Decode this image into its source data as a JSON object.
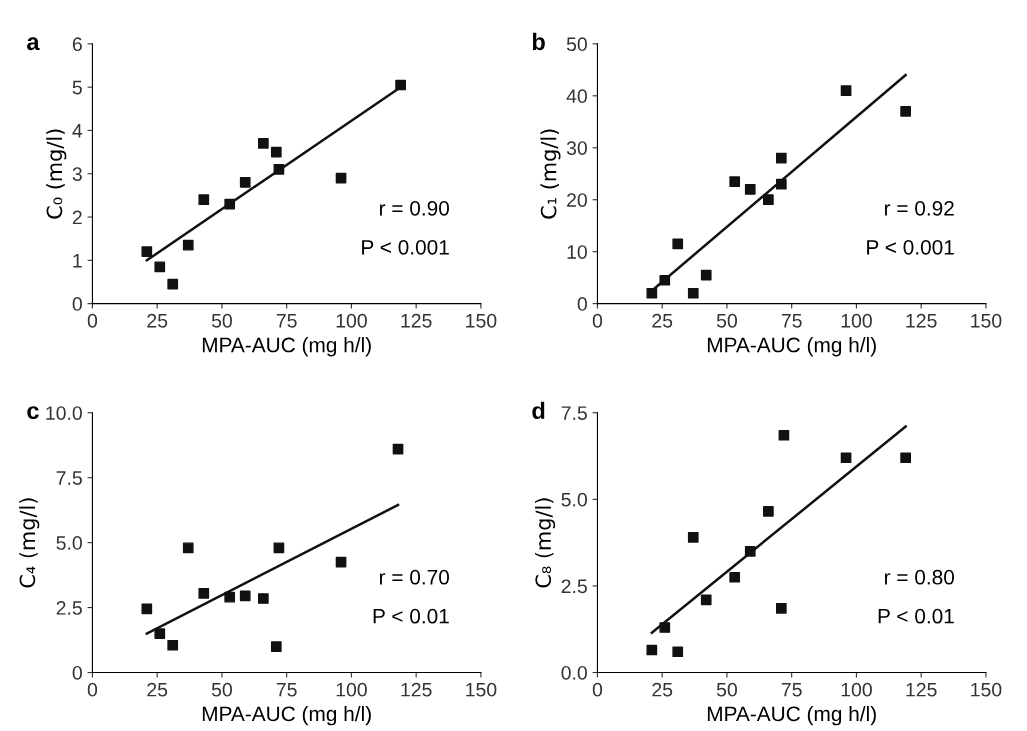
{
  "chart_data": [
    {
      "type": "scatter",
      "title": "a",
      "xlabel": "MPA-AUC (mg h/l)",
      "ylabel": "C₀ (mg/l)",
      "xlim": [
        0,
        150
      ],
      "xticks": [
        0,
        25,
        50,
        75,
        100,
        125,
        150
      ],
      "ylim": [
        0,
        6
      ],
      "yticks": [
        0,
        1,
        2,
        3,
        4,
        5,
        6
      ],
      "grid": false,
      "legend": false,
      "annotations": [
        "r = 0.90",
        "P < 0.001"
      ],
      "series": [
        {
          "marker": "square",
          "color": "#111111",
          "x": [
            21,
            26,
            31,
            37,
            43,
            53,
            59,
            66,
            71,
            72,
            96,
            119
          ],
          "values": [
            1.2,
            0.85,
            0.45,
            1.35,
            2.4,
            2.3,
            2.8,
            3.7,
            3.5,
            3.1,
            2.9,
            5.05
          ]
        },
        {
          "type": "line",
          "color": "#111111",
          "x": [
            21,
            119
          ],
          "values": [
            1.0,
            5.0
          ]
        }
      ]
    },
    {
      "type": "scatter",
      "title": "b",
      "xlabel": "MPA-AUC (mg h/l)",
      "ylabel": "C₁ (mg/l)",
      "xlim": [
        0,
        150
      ],
      "xticks": [
        0,
        25,
        50,
        75,
        100,
        125,
        150
      ],
      "ylim": [
        0,
        50
      ],
      "yticks": [
        0,
        10,
        20,
        30,
        40,
        50
      ],
      "grid": false,
      "legend": false,
      "annotations": [
        "r = 0.92",
        "P < 0.001"
      ],
      "series": [
        {
          "marker": "square",
          "color": "#111111",
          "x": [
            21,
            26,
            31,
            37,
            42,
            53,
            59,
            66,
            71,
            71,
            96,
            119
          ],
          "values": [
            2,
            4.5,
            11.5,
            2,
            5.5,
            23.5,
            22,
            20,
            28,
            23,
            41,
            37
          ]
        },
        {
          "type": "line",
          "color": "#111111",
          "x": [
            21,
            119
          ],
          "values": [
            2.5,
            44
          ]
        }
      ]
    },
    {
      "type": "scatter",
      "title": "c",
      "xlabel": "MPA-AUC (mg h/l)",
      "ylabel": "C₄ (mg/l)",
      "xlim": [
        0,
        150
      ],
      "xticks": [
        0,
        25,
        50,
        75,
        100,
        125,
        150
      ],
      "ylim": [
        0,
        10
      ],
      "yticks": [
        0,
        2.5,
        {
          "value": 5,
          "label": "5.0"
        },
        7.5,
        {
          "value": 10,
          "label": "10.0"
        }
      ],
      "grid": false,
      "legend": false,
      "annotations": [
        "r = 0.70",
        "P < 0.01"
      ],
      "series": [
        {
          "marker": "square",
          "color": "#111111",
          "x": [
            21,
            26,
            31,
            37,
            43,
            53,
            59,
            66,
            71,
            72,
            96,
            118
          ],
          "values": [
            2.45,
            1.5,
            1.05,
            4.8,
            3.05,
            2.9,
            2.95,
            2.85,
            1.0,
            4.8,
            4.25,
            8.6
          ]
        },
        {
          "type": "line",
          "color": "#111111",
          "x": [
            21,
            118
          ],
          "values": [
            1.5,
            6.45
          ]
        }
      ]
    },
    {
      "type": "scatter",
      "title": "d",
      "xlabel": "MPA-AUC (mg h/l)",
      "ylabel": "C₈ (mg/l)",
      "xlim": [
        0,
        150
      ],
      "xticks": [
        0,
        25,
        50,
        75,
        100,
        125,
        150
      ],
      "ylim": [
        0,
        7.5
      ],
      "yticks": [
        {
          "value": 0,
          "label": "0.0"
        },
        2.5,
        {
          "value": 5,
          "label": "5.0"
        },
        7.5
      ],
      "grid": false,
      "legend": false,
      "annotations": [
        "r = 0.80",
        "P < 0.01"
      ],
      "series": [
        {
          "marker": "square",
          "color": "#111111",
          "x": [
            21,
            26,
            31,
            37,
            42,
            53,
            59,
            66,
            71,
            72,
            96,
            119
          ],
          "values": [
            0.65,
            1.3,
            0.6,
            3.9,
            2.1,
            2.75,
            3.5,
            4.65,
            1.85,
            6.85,
            6.2,
            6.2
          ]
        },
        {
          "type": "line",
          "color": "#111111",
          "x": [
            21,
            119
          ],
          "values": [
            1.15,
            7.1
          ]
        }
      ]
    }
  ]
}
